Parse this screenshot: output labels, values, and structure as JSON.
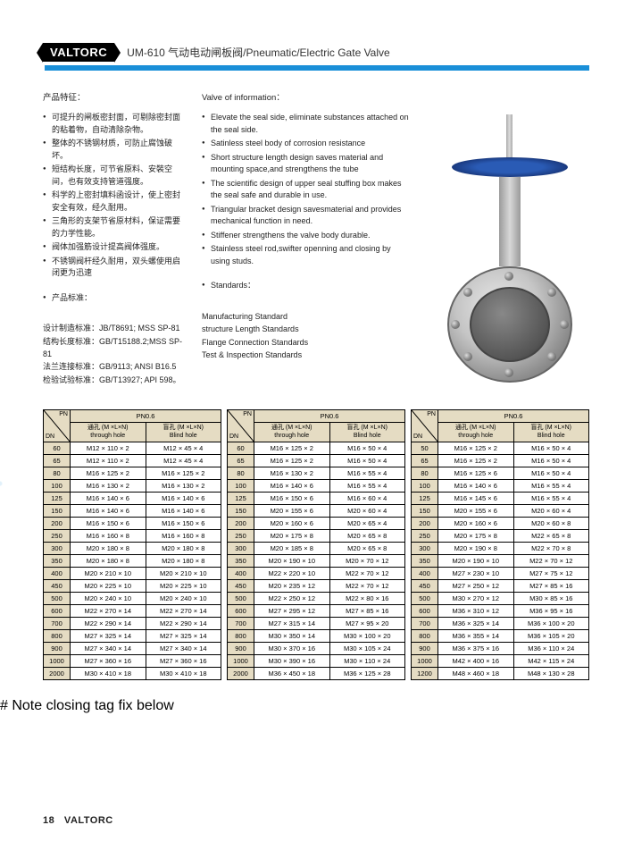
{
  "header": {
    "logo": "VALTORC",
    "title": "UM-610  气动电动闸板阀/Pneumatic/Electric Gate Valve"
  },
  "cn": {
    "heading": "产品特征：",
    "bullets": [
      "可提升的闸板密封面，可剔除密封面的粘着物，自动清除杂物。",
      "整体的不锈钢材质，可防止腐蚀破坏。",
      "短结构长度，可节省原料、安裝空间，也有效支持管道强度。",
      "科学的上密封填料函设计，使上密封安全有效，经久耐用。",
      "三角形的支架节省原材料，保证需要的力学性能。",
      "阀体加强筋设计提高阀体强度。",
      "不锈钢阀杆经久耐用，双头螺使用启闭更为迅速",
      "产品标准："
    ],
    "standards": [
      "设计制造标准：JB/T8691; MSS SP-81",
      "结构长度标准：GB/T15188.2;MSS SP-81",
      "法兰连接标准：GB/9113; ANSI B16.5",
      "检验试验标准：GB/T13927; API 598。"
    ]
  },
  "en": {
    "heading": "Valve of information：",
    "bullets": [
      "Elevate the seal side, eliminate substances attached on the seal side.",
      "Satinless steel body of corrosion resistance",
      "Short structure length design saves material and mounting space,and strengthens the tube",
      "The scientific design of upper seal stuffing box makes the seal safe and durable in use.",
      "Triangular bracket design savesmaterial and provides mechanical function in need.",
      "Stiffener strengthens the valve body durable.",
      "Stainless steel rod,swifter openning and closing by using studs.",
      "Standards："
    ],
    "standards": [
      "Manufacturing Standard",
      "structure Length Standards",
      "Flange Connection Standards",
      "Test & Inspection Standards"
    ]
  },
  "tableHeaders": {
    "pnTop": "PN",
    "pnRight": "PN0.6",
    "dn": "DN",
    "through_cn": "通孔 (M ×L×N)",
    "through_en": "through hole",
    "blind_cn": "盲孔 (M ×L×N)",
    "blind_en": "Blind hole"
  },
  "tables": [
    {
      "rows": [
        [
          "60",
          "M12 × 110 × 2",
          "M12 × 45 × 4"
        ],
        [
          "65",
          "M12 × 110 × 2",
          "M12 × 45 × 4"
        ],
        [
          "80",
          "M16 × 125 × 2",
          "M16 × 125 × 2"
        ],
        [
          "100",
          "M16 × 130 × 2",
          "M16 × 130 × 2"
        ],
        [
          "125",
          "M16 × 140 × 6",
          "M16 × 140 × 6"
        ],
        [
          "150",
          "M16 × 140 × 6",
          "M16 × 140 × 6"
        ],
        [
          "200",
          "M16 × 150 × 6",
          "M16 × 150 × 6"
        ],
        [
          "250",
          "M16 × 160 × 8",
          "M16 × 160 × 8"
        ],
        [
          "300",
          "M20 × 180 × 8",
          "M20 × 180 × 8"
        ],
        [
          "350",
          "M20 × 180 × 8",
          "M20 × 180 × 8"
        ],
        [
          "400",
          "M20 × 210 × 10",
          "M20 × 210 × 10"
        ],
        [
          "450",
          "M20 × 225 × 10",
          "M20 × 225 × 10"
        ],
        [
          "500",
          "M20 × 240 × 10",
          "M20 × 240 × 10"
        ],
        [
          "600",
          "M22 × 270 × 14",
          "M22 × 270 × 14"
        ],
        [
          "700",
          "M22 × 290 × 14",
          "M22 × 290 × 14"
        ],
        [
          "800",
          "M27 × 325 × 14",
          "M27 × 325 × 14"
        ],
        [
          "900",
          "M27 × 340 × 14",
          "M27 × 340 × 14"
        ],
        [
          "1000",
          "M27 × 360 × 16",
          "M27 × 360 × 16"
        ],
        [
          "2000",
          "M30 × 410 × 18",
          "M30 × 410 × 18"
        ]
      ]
    },
    {
      "rows": [
        [
          "60",
          "M16 × 125 × 2",
          "M16 × 50 × 4"
        ],
        [
          "65",
          "M16 × 125 × 2",
          "M16 × 50 × 4"
        ],
        [
          "80",
          "M16 × 130 × 2",
          "M16 × 55 × 4"
        ],
        [
          "100",
          "M16 × 140 × 6",
          "M16 × 55 × 4"
        ],
        [
          "125",
          "M16 × 150 × 6",
          "M16 × 60 × 4"
        ],
        [
          "150",
          "M20 × 155 × 6",
          "M20 × 60 × 4"
        ],
        [
          "200",
          "M20 × 160 × 6",
          "M20 × 65 × 4"
        ],
        [
          "250",
          "M20 × 175 × 8",
          "M20 × 65 × 8"
        ],
        [
          "300",
          "M20 × 185 × 8",
          "M20 × 65 × 8"
        ],
        [
          "350",
          "M20 × 190 × 10",
          "M20 × 70 × 12"
        ],
        [
          "400",
          "M22 × 220 × 10",
          "M22 × 70 × 12"
        ],
        [
          "450",
          "M20 × 235 × 12",
          "M22 × 70 × 12"
        ],
        [
          "500",
          "M22 × 250 × 12",
          "M22 × 80 × 16"
        ],
        [
          "600",
          "M27 × 295 × 12",
          "M27 × 85 × 16"
        ],
        [
          "700",
          "M27 × 315 × 14",
          "M27 × 95 × 20"
        ],
        [
          "800",
          "M30 × 350 × 14",
          "M30 × 100 × 20"
        ],
        [
          "900",
          "M30 × 370 × 16",
          "M30 × 105 × 24"
        ],
        [
          "1000",
          "M30 × 390 × 16",
          "M30 × 110 × 24"
        ],
        [
          "2000",
          "M36 × 450 × 18",
          "M36 × 125 × 28"
        ]
      ]
    },
    {
      "rows": [
        [
          "50",
          "M16 × 125 × 2",
          "M16 × 50 × 4"
        ],
        [
          "65",
          "M16 × 125 × 2",
          "M16 × 50 × 4"
        ],
        [
          "80",
          "M16 × 125 × 6",
          "M16 × 50 × 4"
        ],
        [
          "100",
          "M16 × 140 × 6",
          "M16 × 55 × 4"
        ],
        [
          "125",
          "M16 × 145 × 6",
          "M16 × 55 × 4"
        ],
        [
          "150",
          "M20 × 155 × 6",
          "M20 × 60 × 4"
        ],
        [
          "200",
          "M20 × 160 × 6",
          "M20 × 60 × 8"
        ],
        [
          "250",
          "M20 × 175 × 8",
          "M22 × 65 × 8"
        ],
        [
          "300",
          "M20 × 190 × 8",
          "M22 × 70 × 8"
        ],
        [
          "350",
          "M20 × 190 × 10",
          "M22 × 70 × 12"
        ],
        [
          "400",
          "M27 × 230 × 10",
          "M27 × 75 × 12"
        ],
        [
          "450",
          "M27 × 250 × 12",
          "M27 × 85 × 16"
        ],
        [
          "500",
          "M30 × 270 × 12",
          "M30 × 85 × 16"
        ],
        [
          "600",
          "M36 × 310 × 12",
          "M36 × 95 × 16"
        ],
        [
          "700",
          "M36 × 325 × 14",
          "M36 × 100 × 20"
        ],
        [
          "800",
          "M36 × 355 × 14",
          "M36 × 105 × 20"
        ],
        [
          "900",
          "M36 × 375 × 16",
          "M36 × 110 × 24"
        ],
        [
          "1000",
          "M42 × 400 × 16",
          "M42 × 115 × 24"
        ],
        [
          "1200",
          "M48 × 460 × 18",
          "M48 × 130 × 28"
        ]
      ]
    }
  ],
  "footer": {
    "page": "18",
    "brand": "VALTORC"
  },
  "colors": {
    "accent": "#1a8fd8",
    "tableHeaderBg": "#e5dcc3"
  }
}
